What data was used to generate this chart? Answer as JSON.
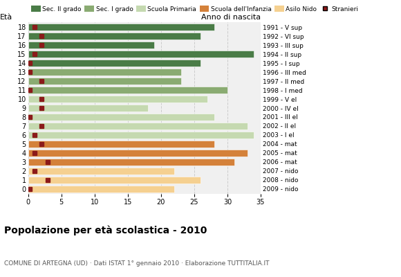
{
  "ages": [
    18,
    17,
    16,
    15,
    14,
    13,
    12,
    11,
    10,
    9,
    8,
    7,
    6,
    5,
    4,
    3,
    2,
    1,
    0
  ],
  "bar_values": [
    28,
    26,
    19,
    34,
    26,
    23,
    23,
    30,
    27,
    18,
    28,
    33,
    34,
    28,
    33,
    31,
    22,
    26,
    22
  ],
  "stranieri": [
    1,
    2,
    2,
    1,
    0.3,
    0.3,
    2,
    0.3,
    2,
    2,
    0.3,
    2,
    1,
    2,
    1,
    3,
    1,
    3,
    0.3
  ],
  "right_labels": [
    "1991 - V sup",
    "1992 - VI sup",
    "1993 - III sup",
    "1994 - II sup",
    "1995 - I sup",
    "1996 - III med",
    "1997 - II med",
    "1998 - I med",
    "1999 - V el",
    "2000 - IV el",
    "2001 - III el",
    "2002 - II el",
    "2003 - I el",
    "2004 - mat",
    "2005 - mat",
    "2006 - mat",
    "2007 - nido",
    "2008 - nido",
    "2009 - nido"
  ],
  "colors": {
    "sec2": "#4a7c47",
    "sec1": "#8aab72",
    "primaria": "#c5d9b0",
    "infanzia": "#d4813a",
    "nido": "#f5d090"
  },
  "bar_colors": [
    "#4a7c47",
    "#4a7c47",
    "#4a7c47",
    "#4a7c47",
    "#4a7c47",
    "#8aab72",
    "#8aab72",
    "#8aab72",
    "#c5d9b0",
    "#c5d9b0",
    "#c5d9b0",
    "#c5d9b0",
    "#c5d9b0",
    "#d4813a",
    "#d4813a",
    "#d4813a",
    "#f5d090",
    "#f5d090",
    "#f5d090"
  ],
  "stranieri_color": "#8b1a1a",
  "legend_labels": [
    "Sec. II grado",
    "Sec. I grado",
    "Scuola Primaria",
    "Scuola dell'Infanzia",
    "Asilo Nido",
    "Stranieri"
  ],
  "title": "Popolazione per età scolastica - 2010",
  "subtitle": "COMUNE DI ARTEGNA (UD) · Dati ISTAT 1° gennaio 2010 · Elaborazione TUTTITALIA.IT",
  "xlabel_eta": "Età",
  "xlabel_anno": "Anno di nascita",
  "xlim": [
    0,
    35
  ],
  "xticks": [
    0,
    5,
    10,
    15,
    20,
    25,
    30,
    35
  ],
  "bg_color": "#f0f0f0",
  "grid_color": "#cccccc"
}
